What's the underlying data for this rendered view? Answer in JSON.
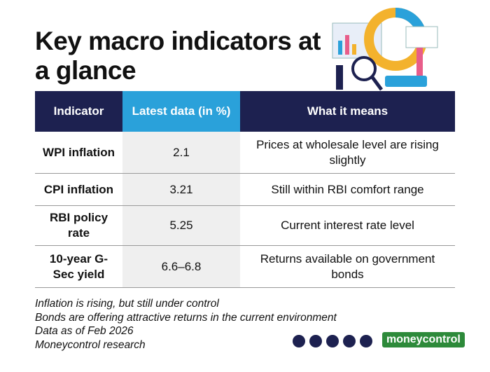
{
  "header": {
    "title": "Key macro indicators at a glance"
  },
  "table": {
    "columns": [
      "Indicator",
      "Latest data (in %)",
      "What it means"
    ],
    "rows": [
      [
        "WPI inflation",
        "2.1",
        "Prices at wholesale level are rising slightly"
      ],
      [
        "CPI inflation",
        "3.21",
        "Still within RBI comfort range"
      ],
      [
        "RBI policy rate",
        "5.25",
        "Current interest rate level"
      ],
      [
        "10-year G-Sec yield",
        "6.6–6.8",
        "Returns available on government bonds"
      ]
    ]
  },
  "notes": [
    "Inflation is rising, but still under control",
    "Bonds are offering attractive returns in the current environment",
    "Data as of Feb 2026",
    "Moneycontrol research"
  ],
  "footer": {
    "logo": "moneycontrol"
  }
}
